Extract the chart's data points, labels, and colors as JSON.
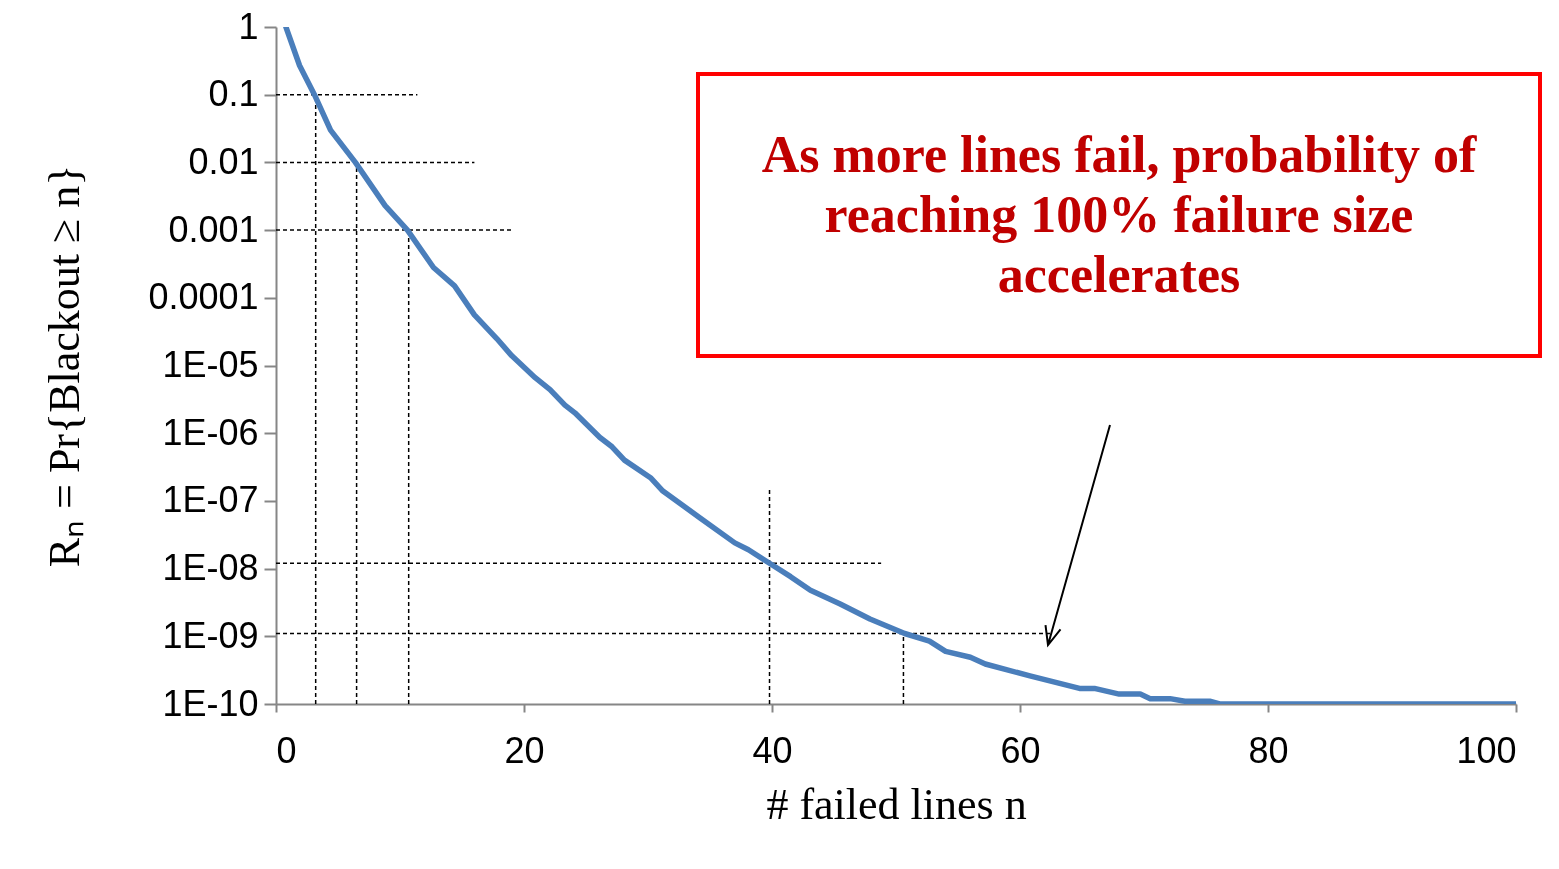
{
  "chart_data": {
    "type": "line",
    "xlabel": "# failed lines n",
    "ylabel": "Rₙ = Pr{Blackout ≥ n}",
    "log": "y",
    "xlim": [
      0,
      100
    ],
    "xticks": [
      0,
      20,
      40,
      60,
      80,
      100
    ],
    "ylim": [
      1e-10,
      1
    ],
    "yticks": [
      1,
      0.1,
      0.01,
      0.001,
      0.0001,
      {
        "value": 1e-05,
        "label": "1E-05"
      },
      {
        "value": 1e-06,
        "label": "1E-06"
      },
      {
        "value": 1e-07,
        "label": "1E-07"
      },
      {
        "value": 1e-08,
        "label": "1E-08"
      },
      {
        "value": 1e-09,
        "label": "1E-09"
      },
      {
        "value": 1e-10,
        "label": "1E-10"
      }
    ],
    "series": [
      {
        "color": "#4a7ebb",
        "line_style": "solid",
        "x": [
          0.8,
          1.9,
          3.1,
          4.4,
          6.4,
          8.8,
          10.6,
          12.7,
          14.4,
          16,
          17.8,
          19,
          20.9,
          22.1,
          23.3,
          24.1,
          26.1,
          27.1,
          28.1,
          30.2,
          31.2,
          34.2,
          37,
          38.1,
          39.8,
          41.5,
          43.1,
          45.5,
          47.9,
          50.7,
          52.7,
          54,
          56,
          57.2,
          60.8,
          64.8,
          66,
          68,
          69.7,
          70.5,
          72.1,
          73.3,
          75.3,
          76.1,
          100
        ],
        "values": [
          1,
          0.27,
          0.1,
          0.03,
          0.01,
          0.0023,
          0.001,
          0.00028,
          0.00015,
          5.6e-05,
          2.5e-05,
          1.4e-05,
          6.6e-06,
          4.4e-06,
          2.6e-06,
          2e-06,
          8.7e-07,
          6.3e-07,
          4e-07,
          2.2e-07,
          1.4e-07,
          5.6e-08,
          2.4e-08,
          1.9e-08,
          1.2e-08,
          7.6e-09,
          4.8e-09,
          3e-09,
          1.8e-09,
          1.1e-09,
          8.5e-10,
          6e-10,
          4.9e-10,
          3.9e-10,
          2.6e-10,
          1.7e-10,
          1.7e-10,
          1.4e-10,
          1.4e-10,
          1.2e-10,
          1.2e-10,
          1.1e-10,
          1.1e-10,
          1e-10,
          1e-10
        ]
      },
      {
        "type": "line",
        "color": "#000000",
        "line_style": "dashed",
        "x": [
          0,
          11.4
        ],
        "values": [
          0.1,
          0.1
        ]
      },
      {
        "type": "line",
        "color": "#000000",
        "line_style": "dashed",
        "x": [
          0,
          16
        ],
        "values": [
          0.01,
          0.01
        ]
      },
      {
        "type": "line",
        "color": "#000000",
        "line_style": "dashed",
        "x": [
          0,
          19
        ],
        "values": [
          0.001,
          0.001
        ]
      },
      {
        "type": "line",
        "color": "#000000",
        "line_style": "dashed",
        "x": [
          0,
          48.8
        ],
        "values": [
          1.2e-08,
          1.2e-08
        ]
      },
      {
        "type": "line",
        "color": "#000000",
        "line_style": "dashed",
        "x": [
          0,
          62.5
        ],
        "values": [
          1.1e-09,
          1.1e-09
        ]
      },
      {
        "type": "line",
        "color": "#000000",
        "line_style": "dashed",
        "x": [
          3.2,
          3.2
        ],
        "values": [
          1e-10,
          0.1
        ]
      },
      {
        "type": "line",
        "color": "#000000",
        "line_style": "dashed",
        "x": [
          6.5,
          6.5
        ],
        "values": [
          1e-10,
          0.01
        ]
      },
      {
        "type": "line",
        "color": "#000000",
        "line_style": "dashed",
        "x": [
          10.7,
          10.7
        ],
        "values": [
          1e-10,
          0.001
        ]
      },
      {
        "type": "line",
        "color": "#000000",
        "line_style": "dashed",
        "x": [
          39.8,
          39.8
        ],
        "values": [
          1e-10,
          1.6e-07
        ]
      },
      {
        "type": "line",
        "color": "#000000",
        "line_style": "dashed",
        "x": [
          50.6,
          50.6
        ],
        "values": [
          1e-10,
          1.1e-09
        ]
      }
    ],
    "annotations": [
      "As more lines fail, probability of reaching 100% failure size accelerates"
    ]
  }
}
